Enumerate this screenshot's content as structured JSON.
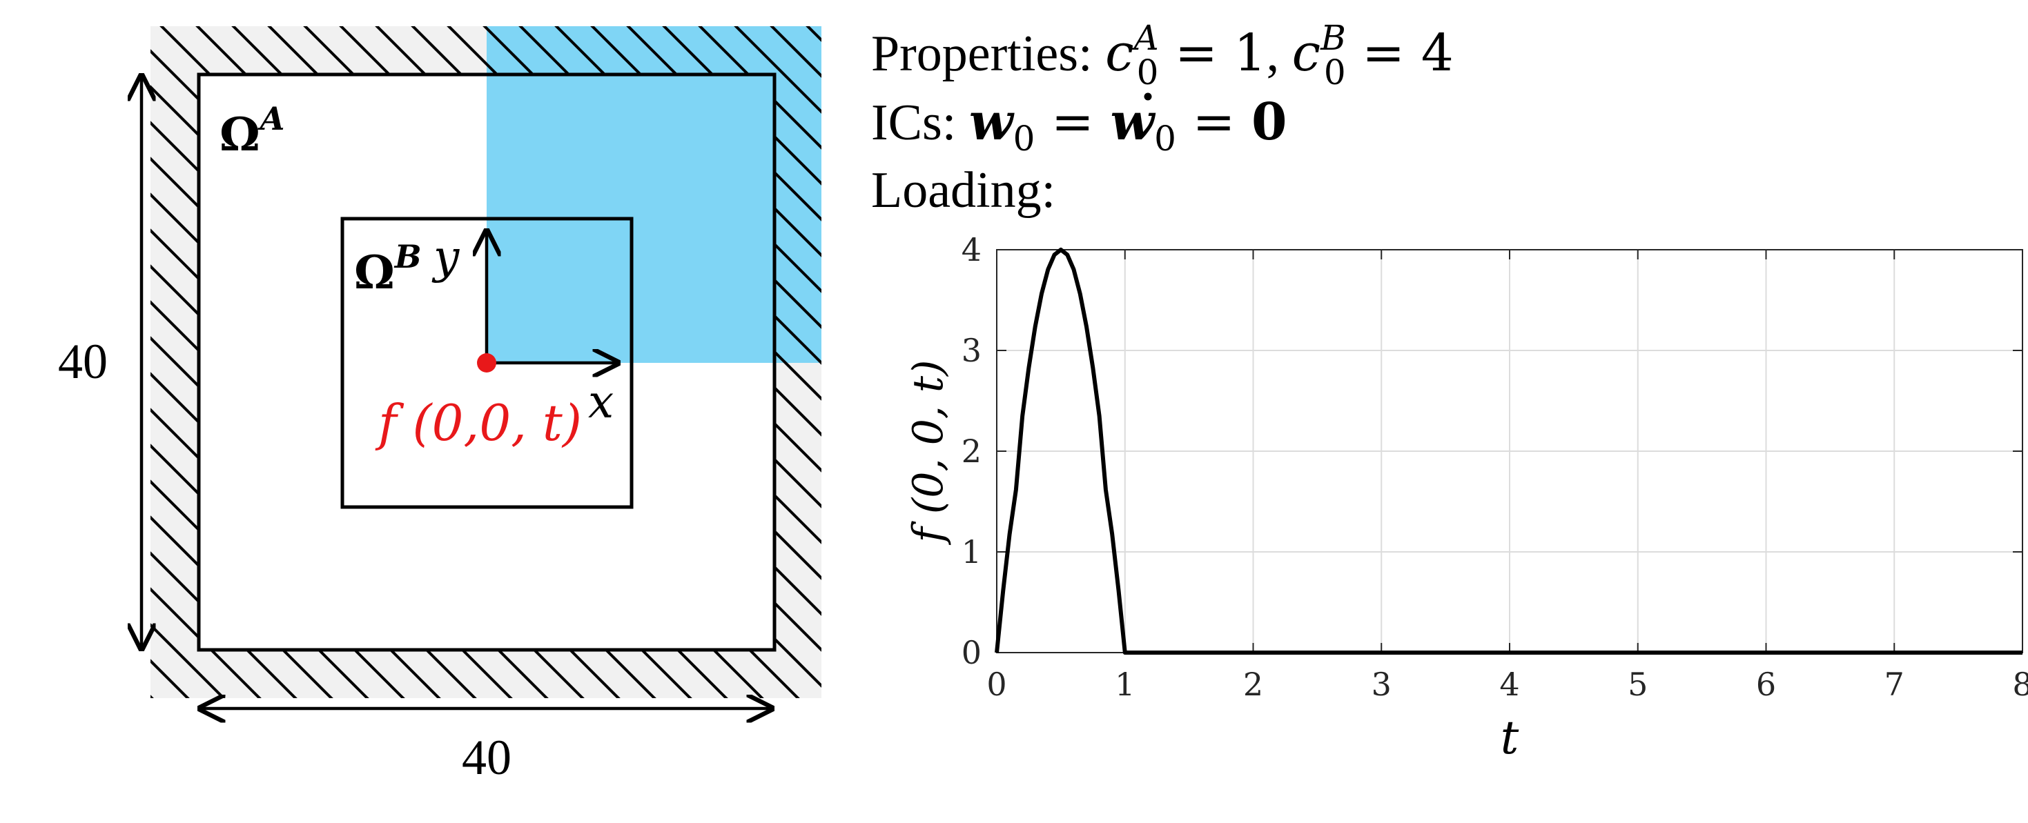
{
  "diagram": {
    "domain_a_label": "Ω",
    "domain_a_sup": "A",
    "domain_b_label": "Ω",
    "domain_b_sup": "B",
    "y_axis": "y",
    "x_axis": "x",
    "load_label": "f (0,0, t)",
    "height_dim": "40",
    "width_dim": "40",
    "colors": {
      "highlight": "#7fd5f5",
      "hatch_bg": "#f1f1f1",
      "load": "#e8181a",
      "line": "#000000"
    }
  },
  "text": {
    "properties_prefix": "Properties: ",
    "c_symbol": "c",
    "c_sub": "0",
    "c_a_sup": "A",
    "c_a_value": " = 1",
    "separator": ", ",
    "c_b_sup": "B",
    "c_b_value": " = 4",
    "ics_prefix": "ICs: ",
    "w_symbol": "w",
    "w_sub": "0",
    "eq1": " = ",
    "eq2": " = ",
    "zero": "0",
    "loading": "Loading:"
  },
  "chart_data": {
    "type": "line",
    "xlabel": "t",
    "ylabel": "f (0, 0, t)",
    "xlim": [
      0,
      8
    ],
    "ylim": [
      0,
      4
    ],
    "x_ticks": [
      "0",
      "1",
      "2",
      "3",
      "4",
      "5",
      "6",
      "7",
      "8"
    ],
    "y_ticks": [
      "0",
      "1",
      "2",
      "3",
      "4"
    ],
    "grid": true,
    "series": [
      {
        "x": [
          0,
          0.05,
          0.1,
          0.15,
          0.2,
          0.25,
          0.3,
          0.35,
          0.4,
          0.45,
          0.5,
          0.55,
          0.6,
          0.65,
          0.7,
          0.75,
          0.8,
          0.85,
          0.9,
          0.95,
          1.0,
          8.0
        ],
        "y": [
          0,
          0.618,
          1.176,
          1.618,
          2.351,
          2.828,
          3.236,
          3.564,
          3.804,
          3.951,
          4.0,
          3.951,
          3.804,
          3.564,
          3.236,
          2.828,
          2.351,
          1.618,
          1.176,
          0.618,
          0,
          0
        ]
      }
    ]
  }
}
